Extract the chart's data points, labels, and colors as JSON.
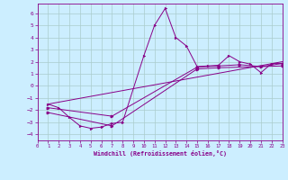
{
  "xlabel": "Windchill (Refroidissement éolien,°C)",
  "bg_color": "#cceeff",
  "grid_color": "#aacccc",
  "line_color": "#880088",
  "xlim": [
    0,
    23
  ],
  "ylim": [
    -4.5,
    6.8
  ],
  "xticks": [
    0,
    1,
    2,
    3,
    4,
    5,
    6,
    7,
    8,
    9,
    10,
    11,
    12,
    13,
    14,
    15,
    16,
    17,
    18,
    19,
    20,
    21,
    22,
    23
  ],
  "yticks": [
    -4,
    -3,
    -2,
    -1,
    0,
    1,
    2,
    3,
    4,
    5,
    6
  ],
  "line1_x": [
    1,
    2,
    3,
    4,
    5,
    6,
    7,
    8,
    10,
    11,
    12,
    13,
    14,
    15,
    16,
    17,
    18,
    19,
    20,
    21,
    22,
    23
  ],
  "line1_y": [
    -1.5,
    -1.8,
    -2.6,
    -3.3,
    -3.5,
    -3.4,
    -3.1,
    -3.0,
    2.5,
    5.0,
    6.4,
    4.0,
    3.3,
    1.6,
    1.65,
    1.7,
    2.5,
    2.0,
    1.8,
    1.1,
    1.85,
    1.85
  ],
  "line2_x": [
    1,
    23
  ],
  "line2_y": [
    -1.5,
    2.0
  ],
  "line3_x": [
    1,
    7,
    15,
    17,
    19,
    21,
    23
  ],
  "line3_y": [
    -1.8,
    -2.5,
    1.55,
    1.65,
    1.75,
    1.6,
    1.85
  ],
  "line4_x": [
    1,
    7,
    15,
    17,
    23
  ],
  "line4_y": [
    -2.2,
    -3.3,
    1.4,
    1.5,
    1.65
  ]
}
